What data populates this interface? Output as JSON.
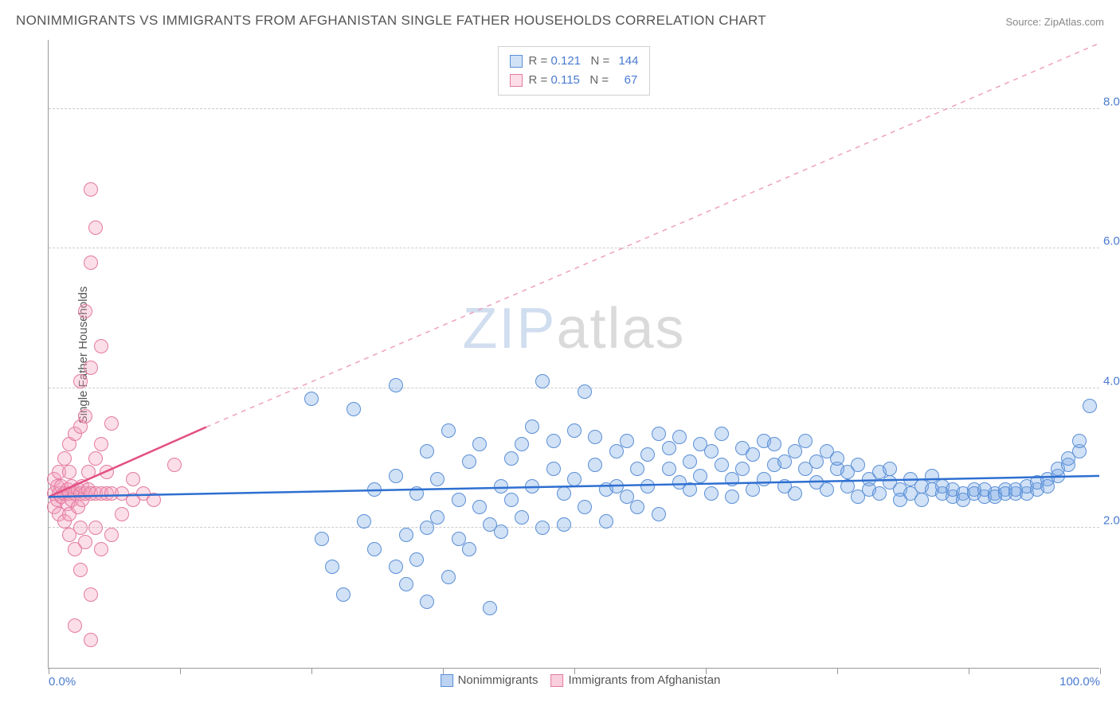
{
  "title": "NONIMMIGRANTS VS IMMIGRANTS FROM AFGHANISTAN SINGLE FATHER HOUSEHOLDS CORRELATION CHART",
  "source": "Source: ZipAtlas.com",
  "ylabel": "Single Father Households",
  "watermark": {
    "zip": "ZIP",
    "atlas": "atlas"
  },
  "chart": {
    "type": "scatter",
    "xlim": [
      0,
      100
    ],
    "ylim": [
      0,
      9
    ],
    "xticks": [
      0,
      12.5,
      25,
      37.5,
      50,
      62.5,
      75,
      87.5,
      100
    ],
    "xtick_labels": {
      "0": "0.0%",
      "100": "100.0%"
    },
    "yticks": [
      2,
      4,
      6,
      8
    ],
    "ytick_labels": [
      "2.0%",
      "4.0%",
      "6.0%",
      "8.0%"
    ],
    "grid_color": "#cccccc",
    "background_color": "#ffffff",
    "marker_radius": 9,
    "marker_stroke_width": 1.2,
    "series": [
      {
        "name": "Nonimmigrants",
        "fill": "rgba(122,168,228,0.35)",
        "stroke": "#5a8fd6",
        "R": "0.121",
        "N": "144",
        "trend": {
          "x1": 0,
          "y1": 2.45,
          "x2": 100,
          "y2": 2.75,
          "stroke": "#2e6fd1",
          "width": 2.5,
          "dash": "none"
        },
        "points": [
          [
            25,
            3.85
          ],
          [
            26,
            1.85
          ],
          [
            27,
            1.45
          ],
          [
            28,
            1.05
          ],
          [
            29,
            3.7
          ],
          [
            30,
            2.1
          ],
          [
            31,
            2.55
          ],
          [
            31,
            1.7
          ],
          [
            33,
            1.45
          ],
          [
            33,
            2.75
          ],
          [
            33,
            4.05
          ],
          [
            34,
            1.9
          ],
          [
            34,
            1.2
          ],
          [
            35,
            2.5
          ],
          [
            35,
            1.55
          ],
          [
            36,
            2.0
          ],
          [
            36,
            3.1
          ],
          [
            36,
            0.95
          ],
          [
            37,
            2.7
          ],
          [
            37,
            2.15
          ],
          [
            38,
            1.3
          ],
          [
            38,
            3.4
          ],
          [
            39,
            2.4
          ],
          [
            39,
            1.85
          ],
          [
            40,
            2.95
          ],
          [
            40,
            1.7
          ],
          [
            41,
            2.3
          ],
          [
            41,
            3.2
          ],
          [
            42,
            2.05
          ],
          [
            42,
            0.85
          ],
          [
            43,
            2.6
          ],
          [
            43,
            1.95
          ],
          [
            44,
            3.0
          ],
          [
            44,
            2.4
          ],
          [
            45,
            3.2
          ],
          [
            45,
            2.15
          ],
          [
            46,
            2.6
          ],
          [
            46,
            3.45
          ],
          [
            47,
            2.0
          ],
          [
            47,
            4.1
          ],
          [
            48,
            2.85
          ],
          [
            48,
            3.25
          ],
          [
            49,
            2.5
          ],
          [
            49,
            2.05
          ],
          [
            50,
            3.4
          ],
          [
            50,
            2.7
          ],
          [
            51,
            2.3
          ],
          [
            51,
            3.95
          ],
          [
            52,
            2.9
          ],
          [
            52,
            3.3
          ],
          [
            53,
            2.55
          ],
          [
            53,
            2.1
          ],
          [
            54,
            3.1
          ],
          [
            54,
            2.6
          ],
          [
            55,
            2.45
          ],
          [
            55,
            3.25
          ],
          [
            56,
            2.85
          ],
          [
            56,
            2.3
          ],
          [
            57,
            3.05
          ],
          [
            57,
            2.6
          ],
          [
            58,
            3.35
          ],
          [
            58,
            2.2
          ],
          [
            59,
            2.85
          ],
          [
            59,
            3.15
          ],
          [
            60,
            2.65
          ],
          [
            60,
            3.3
          ],
          [
            61,
            2.95
          ],
          [
            61,
            2.55
          ],
          [
            62,
            3.2
          ],
          [
            62,
            2.75
          ],
          [
            63,
            2.5
          ],
          [
            63,
            3.1
          ],
          [
            64,
            2.9
          ],
          [
            64,
            3.35
          ],
          [
            65,
            2.7
          ],
          [
            65,
            2.45
          ],
          [
            66,
            3.15
          ],
          [
            66,
            2.85
          ],
          [
            67,
            2.55
          ],
          [
            67,
            3.05
          ],
          [
            68,
            3.25
          ],
          [
            68,
            2.7
          ],
          [
            69,
            2.9
          ],
          [
            69,
            3.2
          ],
          [
            70,
            2.6
          ],
          [
            70,
            2.95
          ],
          [
            71,
            3.1
          ],
          [
            71,
            2.5
          ],
          [
            72,
            2.85
          ],
          [
            72,
            3.25
          ],
          [
            73,
            2.65
          ],
          [
            73,
            2.95
          ],
          [
            74,
            3.1
          ],
          [
            74,
            2.55
          ],
          [
            75,
            2.85
          ],
          [
            75,
            3.0
          ],
          [
            76,
            2.6
          ],
          [
            76,
            2.8
          ],
          [
            77,
            2.9
          ],
          [
            77,
            2.45
          ],
          [
            78,
            2.7
          ],
          [
            78,
            2.55
          ],
          [
            79,
            2.8
          ],
          [
            79,
            2.5
          ],
          [
            80,
            2.65
          ],
          [
            80,
            2.85
          ],
          [
            81,
            2.55
          ],
          [
            81,
            2.4
          ],
          [
            82,
            2.7
          ],
          [
            82,
            2.5
          ],
          [
            83,
            2.6
          ],
          [
            83,
            2.4
          ],
          [
            84,
            2.55
          ],
          [
            84,
            2.75
          ],
          [
            85,
            2.5
          ],
          [
            85,
            2.6
          ],
          [
            86,
            2.45
          ],
          [
            86,
            2.55
          ],
          [
            87,
            2.5
          ],
          [
            87,
            2.4
          ],
          [
            88,
            2.55
          ],
          [
            88,
            2.5
          ],
          [
            89,
            2.45
          ],
          [
            89,
            2.55
          ],
          [
            90,
            2.5
          ],
          [
            90,
            2.45
          ],
          [
            91,
            2.55
          ],
          [
            91,
            2.5
          ],
          [
            92,
            2.5
          ],
          [
            92,
            2.55
          ],
          [
            93,
            2.5
          ],
          [
            93,
            2.6
          ],
          [
            94,
            2.55
          ],
          [
            94,
            2.65
          ],
          [
            95,
            2.7
          ],
          [
            95,
            2.6
          ],
          [
            96,
            2.75
          ],
          [
            96,
            2.85
          ],
          [
            97,
            2.9
          ],
          [
            97,
            3.0
          ],
          [
            98,
            3.1
          ],
          [
            98,
            3.25
          ],
          [
            99,
            3.75
          ]
        ]
      },
      {
        "name": "Immigrants from Afghanistan",
        "fill": "rgba(244,160,190,0.35)",
        "stroke": "#e47aa0",
        "R": "0.115",
        "N": "67",
        "trend_solid": {
          "x1": 0,
          "y1": 2.45,
          "x2": 15,
          "y2": 3.45,
          "stroke": "#e35083",
          "width": 2.5
        },
        "trend_dash": {
          "x1": 15,
          "y1": 3.45,
          "x2": 100,
          "y2": 8.95,
          "stroke": "#f0a0be",
          "width": 1.5,
          "dash": "6,6"
        },
        "points": [
          [
            0.5,
            2.5
          ],
          [
            0.5,
            2.3
          ],
          [
            0.5,
            2.7
          ],
          [
            0.8,
            2.4
          ],
          [
            0.8,
            2.6
          ],
          [
            1,
            2.5
          ],
          [
            1,
            2.2
          ],
          [
            1,
            2.8
          ],
          [
            1.2,
            2.45
          ],
          [
            1.2,
            2.6
          ],
          [
            1.5,
            2.5
          ],
          [
            1.5,
            3.0
          ],
          [
            1.5,
            2.1
          ],
          [
            1.8,
            2.55
          ],
          [
            1.8,
            2.35
          ],
          [
            2,
            2.5
          ],
          [
            2,
            2.8
          ],
          [
            2,
            2.2
          ],
          [
            2,
            3.2
          ],
          [
            2,
            1.9
          ],
          [
            2.2,
            2.6
          ],
          [
            2.2,
            2.4
          ],
          [
            2.5,
            2.5
          ],
          [
            2.5,
            3.35
          ],
          [
            2.5,
            1.7
          ],
          [
            2.5,
            0.6
          ],
          [
            2.8,
            2.55
          ],
          [
            2.8,
            2.3
          ],
          [
            3,
            2.5
          ],
          [
            3,
            3.45
          ],
          [
            3,
            2.0
          ],
          [
            3,
            1.4
          ],
          [
            3,
            4.1
          ],
          [
            3.2,
            2.6
          ],
          [
            3.2,
            2.4
          ],
          [
            3.5,
            2.5
          ],
          [
            3.5,
            3.6
          ],
          [
            3.5,
            1.8
          ],
          [
            3.5,
            5.1
          ],
          [
            3.8,
            2.55
          ],
          [
            3.8,
            2.8
          ],
          [
            4,
            2.5
          ],
          [
            4,
            4.3
          ],
          [
            4,
            1.05
          ],
          [
            4,
            0.4
          ],
          [
            4,
            5.8
          ],
          [
            4,
            6.85
          ],
          [
            4.5,
            2.5
          ],
          [
            4.5,
            3.0
          ],
          [
            4.5,
            2.0
          ],
          [
            4.5,
            6.3
          ],
          [
            5,
            2.5
          ],
          [
            5,
            3.2
          ],
          [
            5,
            1.7
          ],
          [
            5,
            4.6
          ],
          [
            5.5,
            2.5
          ],
          [
            5.5,
            2.8
          ],
          [
            6,
            2.5
          ],
          [
            6,
            1.9
          ],
          [
            6,
            3.5
          ],
          [
            7,
            2.5
          ],
          [
            7,
            2.2
          ],
          [
            8,
            2.4
          ],
          [
            8,
            2.7
          ],
          [
            9,
            2.5
          ],
          [
            10,
            2.4
          ],
          [
            12,
            2.9
          ]
        ]
      }
    ]
  },
  "legend_bottom": [
    {
      "label": "Nonimmigrants",
      "fill": "rgba(122,168,228,0.5)",
      "stroke": "#5a8fd6"
    },
    {
      "label": "Immigrants from Afghanistan",
      "fill": "rgba(244,160,190,0.5)",
      "stroke": "#e47aa0"
    }
  ]
}
